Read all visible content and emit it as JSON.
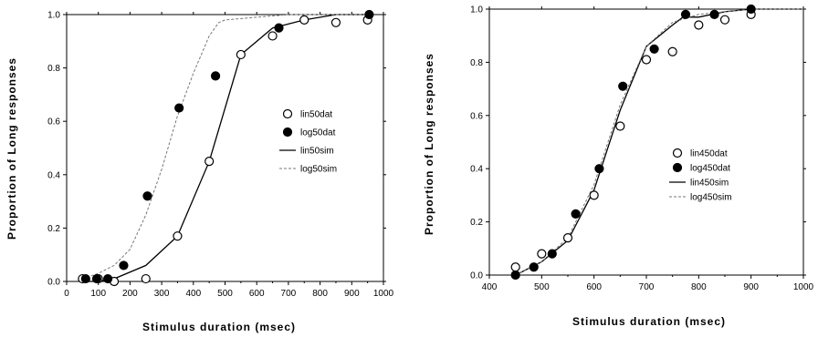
{
  "chart_data": [
    {
      "type": "scatter",
      "xlabel": "Stimulus  duration  (msec)",
      "ylabel": "Proportion  of  Long  responses",
      "xlim": [
        0,
        1000
      ],
      "ylim": [
        0,
        1.0
      ],
      "xticks": [
        0,
        100,
        200,
        300,
        400,
        500,
        600,
        700,
        800,
        900,
        1000
      ],
      "yticks": [
        0.0,
        0.2,
        0.4,
        0.6,
        0.8,
        1.0
      ],
      "xtick_labels": [
        "0",
        "100",
        "200",
        "300",
        "400",
        "500",
        "600",
        "700",
        "800",
        "900",
        "1000"
      ],
      "ytick_labels": [
        "0.0",
        "0.2",
        "0.4",
        "0.6",
        "0.8",
        "1.0"
      ],
      "legend_position": "right-middle",
      "series": [
        {
          "name": "lin50dat",
          "style": "open-circle",
          "x": [
            50,
            100,
            150,
            250,
            350,
            450,
            550,
            650,
            750,
            850,
            950
          ],
          "y": [
            0.01,
            0.01,
            0.0,
            0.01,
            0.17,
            0.45,
            0.85,
            0.92,
            0.98,
            0.97,
            0.98
          ]
        },
        {
          "name": "log50dat",
          "style": "filled-circle",
          "x": [
            60,
            95,
            130,
            180,
            255,
            355,
            470,
            670,
            955
          ],
          "y": [
            0.01,
            0.01,
            0.01,
            0.06,
            0.32,
            0.65,
            0.77,
            0.95,
            1.0
          ]
        },
        {
          "name": "lin50sim",
          "style": "solid-line",
          "x": [
            50,
            100,
            150,
            250,
            350,
            450,
            550,
            650,
            750,
            850,
            950
          ],
          "y": [
            0.0,
            0.0,
            0.01,
            0.06,
            0.17,
            0.45,
            0.85,
            0.95,
            0.98,
            1.0,
            1.0
          ]
        },
        {
          "name": "log50sim",
          "style": "dashed-line",
          "x": [
            50,
            100,
            150,
            200,
            250,
            300,
            350,
            400,
            450,
            480,
            500,
            600,
            700,
            800,
            950
          ],
          "y": [
            0.01,
            0.03,
            0.06,
            0.12,
            0.25,
            0.42,
            0.62,
            0.78,
            0.92,
            0.97,
            0.98,
            0.99,
            1.0,
            1.0,
            1.0
          ]
        }
      ]
    },
    {
      "type": "scatter",
      "xlabel": "Stimulus  duration  (msec)",
      "ylabel": "Proportion  of  Long  responses",
      "xlim": [
        400,
        1000
      ],
      "ylim": [
        0,
        1.0
      ],
      "xticks": [
        400,
        500,
        600,
        700,
        800,
        900,
        1000
      ],
      "yticks": [
        0.0,
        0.2,
        0.4,
        0.6,
        0.8,
        1.0
      ],
      "xtick_labels": [
        "400",
        "500",
        "600",
        "700",
        "800",
        "900",
        "1000"
      ],
      "ytick_labels": [
        "0.0",
        "0.2",
        "0.4",
        "0.6",
        "0.8",
        "1.0"
      ],
      "legend_position": "right-middle",
      "series": [
        {
          "name": "lin450dat",
          "style": "open-circle",
          "x": [
            450,
            500,
            550,
            600,
            650,
            700,
            750,
            800,
            850,
            900
          ],
          "y": [
            0.03,
            0.08,
            0.14,
            0.3,
            0.56,
            0.81,
            0.84,
            0.94,
            0.96,
            0.98
          ]
        },
        {
          "name": "log450dat",
          "style": "filled-circle",
          "x": [
            450,
            485,
            520,
            565,
            610,
            655,
            715,
            775,
            830,
            900
          ],
          "y": [
            0.0,
            0.03,
            0.08,
            0.23,
            0.4,
            0.71,
            0.85,
            0.98,
            0.98,
            1.0
          ]
        },
        {
          "name": "lin450sim",
          "style": "solid-line",
          "x": [
            450,
            500,
            550,
            600,
            650,
            700,
            750,
            770,
            800,
            850,
            900,
            1000
          ],
          "y": [
            0.0,
            0.05,
            0.13,
            0.32,
            0.62,
            0.86,
            0.94,
            0.97,
            0.97,
            0.99,
            1.0,
            1.0
          ]
        },
        {
          "name": "log450sim",
          "style": "dashed-line",
          "x": [
            450,
            500,
            550,
            600,
            650,
            700,
            750,
            800,
            850,
            900,
            1000
          ],
          "y": [
            0.0,
            0.05,
            0.14,
            0.34,
            0.64,
            0.86,
            0.95,
            0.98,
            0.99,
            1.0,
            1.0
          ]
        }
      ]
    }
  ]
}
